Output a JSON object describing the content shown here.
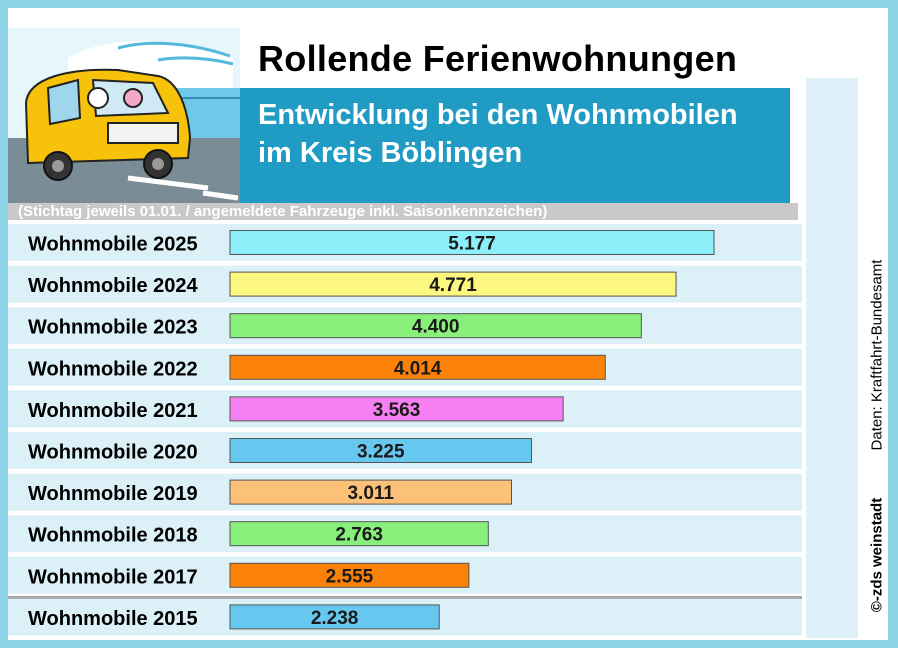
{
  "title": "Rollende Ferienwohnungen",
  "subtitle": "Entwicklung bei den Wohnmobilen im Kreis Böblingen",
  "note": "(Stichtag jeweils 01.01.  /  angemeldete Fahrzeuge inkl. Saisonkennzeichen)",
  "source": "Daten: Kraftfahrt-Bundesamt",
  "copyright": "©-zds  weinstadt",
  "chart_data": {
    "type": "bar",
    "orientation": "horizontal",
    "categories": [
      "Wohnmobile 2025",
      "Wohnmobile 2024",
      "Wohnmobile 2023",
      "Wohnmobile 2022",
      "Wohnmobile 2021",
      "Wohnmobile 2020",
      "Wohnmobile 2019",
      "Wohnmobile 2018",
      "Wohnmobile 2017",
      "Wohnmobile 2015"
    ],
    "values": [
      5177,
      4771,
      4400,
      4014,
      3563,
      3225,
      3011,
      2763,
      2555,
      2238
    ],
    "value_labels": [
      "5.177",
      "4.771",
      "4.400",
      "4.014",
      "3.563",
      "3.225",
      "3.011",
      "2.763",
      "2.555",
      "2.238"
    ],
    "colors": [
      "#8cf0fb",
      "#fbf77f",
      "#88f07a",
      "#fb8207",
      "#f680f1",
      "#67c8ef",
      "#fcc178",
      "#88f07a",
      "#fb8207",
      "#67c8ef"
    ],
    "grid": false,
    "legend": "none"
  }
}
